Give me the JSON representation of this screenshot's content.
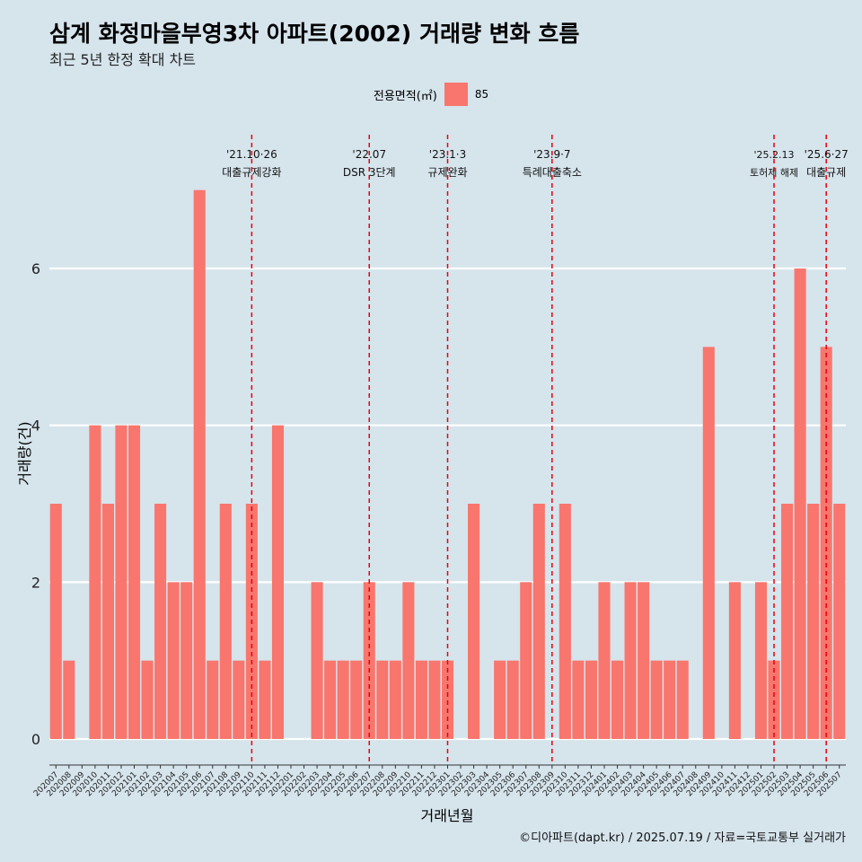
{
  "title": "삼계 화정마을부영3차 아파트(2002) 거래량 변화 흐름",
  "subtitle": "최근 5년 한정 확대 차트",
  "caption": "©디아파트(dapt.kr) / 2025.07.19 / 자료=국토교통부 실거래가",
  "colors": {
    "bar": "#f8766d",
    "background": "#d6e4ec",
    "grid": "#ffffff",
    "event_line": "#e8000b"
  },
  "chart_data": {
    "type": "bar",
    "xlabel": "거래년월",
    "ylabel": "거래량(건)",
    "ylim": [
      0,
      7.7
    ],
    "yticks": [
      0,
      2,
      4,
      6
    ],
    "grid": true,
    "legend": {
      "title": "전용면적(㎡)",
      "position": "top",
      "entries": [
        "85"
      ]
    },
    "categories": [
      "202007",
      "202008",
      "202009",
      "202010",
      "202011",
      "202012",
      "202101",
      "202102",
      "202103",
      "202104",
      "202105",
      "202106",
      "202107",
      "202108",
      "202109",
      "202110",
      "202111",
      "202112",
      "202201",
      "202202",
      "202203",
      "202204",
      "202205",
      "202206",
      "202207",
      "202208",
      "202209",
      "202210",
      "202211",
      "202212",
      "202301",
      "202302",
      "202303",
      "202304",
      "202305",
      "202306",
      "202307",
      "202308",
      "202309",
      "202310",
      "202311",
      "202312",
      "202401",
      "202402",
      "202403",
      "202404",
      "202405",
      "202406",
      "202407",
      "202408",
      "202409",
      "202410",
      "202411",
      "202412",
      "202501",
      "202502",
      "202503",
      "202504",
      "202505",
      "202506",
      "202507"
    ],
    "series": [
      {
        "name": "85",
        "values": [
          3,
          1,
          0,
          4,
          3,
          4,
          4,
          1,
          3,
          2,
          2,
          7,
          1,
          3,
          1,
          3,
          1,
          4,
          0,
          0,
          2,
          1,
          1,
          1,
          2,
          1,
          1,
          2,
          1,
          1,
          1,
          0,
          3,
          0,
          1,
          1,
          2,
          3,
          0,
          3,
          1,
          1,
          2,
          1,
          2,
          2,
          1,
          1,
          1,
          0,
          5,
          0,
          2,
          0,
          2,
          1,
          3,
          6,
          3,
          5,
          3
        ]
      }
    ],
    "annotations": [
      {
        "x": "202110",
        "date": "'21.10·26",
        "label": "대출규제강화"
      },
      {
        "x": "202207",
        "date": "'22.07",
        "label": "DSR 3단계"
      },
      {
        "x": "202301",
        "date": "'23.1·3",
        "label": "규제완화"
      },
      {
        "x": "202309",
        "date": "'23.9·7",
        "label": "특례대출축소"
      },
      {
        "x": "202502",
        "date": "'25.2.13",
        "label": "토허제 해제"
      },
      {
        "x": "202506",
        "date": "'25.6·27",
        "label": "대출규제"
      }
    ]
  }
}
